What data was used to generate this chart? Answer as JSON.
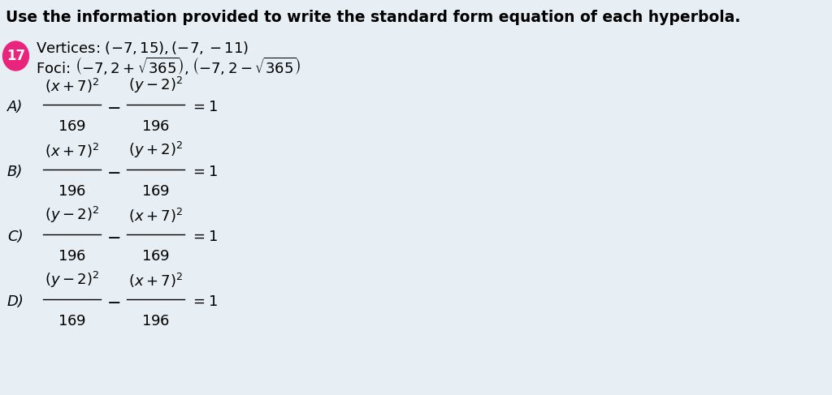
{
  "background_color": "#e8eff4",
  "title": "Use the information provided to write the standard form equation of each hyperbola.",
  "title_fontsize": 13.5,
  "title_bold": true,
  "problem_number": "17",
  "circle_color": "#e8247c",
  "circle_text_color": "#ffffff",
  "problem_number_fontsize": 12,
  "given_line1": "Vertices: $(-7, 15), (-7, -11)$",
  "given_line2": "Foci: $\\left(-7, 2+\\sqrt{365}\\right), \\left(-7, 2-\\sqrt{365}\\right)$",
  "given_fontsize": 13,
  "options": [
    {
      "label": "A)",
      "numerator1": "(x + 7)^{2}",
      "denom1": "169",
      "numerator2": "(y-2)^{2}",
      "denom2": "196"
    },
    {
      "label": "B)",
      "numerator1": "(x + 7)^{2}",
      "denom1": "196",
      "numerator2": "(y+2)^{2}",
      "denom2": "169"
    },
    {
      "label": "C)",
      "numerator1": "(y-2)^{2}",
      "denom1": "196",
      "numerator2": "(x + 7)^{2}",
      "denom2": "169"
    },
    {
      "label": "D)",
      "numerator1": "(y-2)^{2}",
      "denom1": "169",
      "numerator2": "(x + 7)^{2}",
      "denom2": "196"
    }
  ],
  "option_fontsize": 13,
  "label_fontsize": 13,
  "fig_width": 10.24,
  "fig_height": 4.87,
  "dpi": 100
}
